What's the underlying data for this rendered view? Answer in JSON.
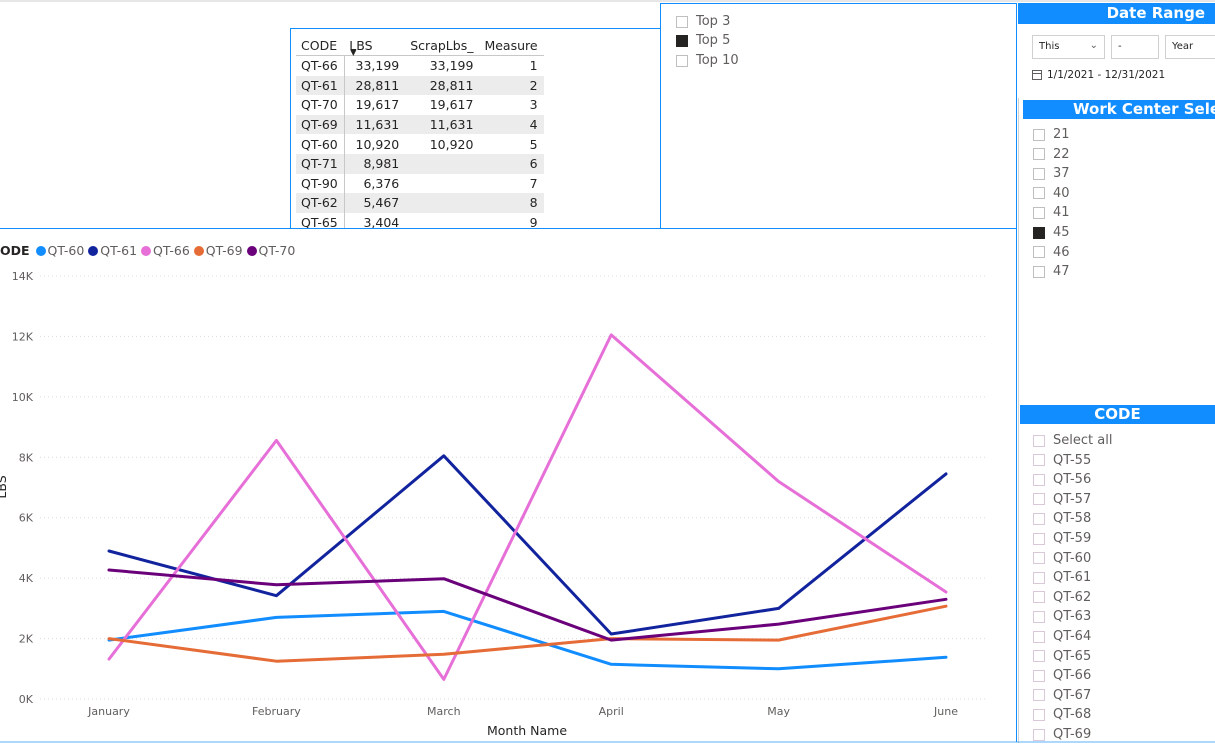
{
  "table": {
    "headers": [
      "CODE",
      "LBS",
      "ScrapLbs_",
      "Measure"
    ],
    "sort_icon": "sort-down-icon",
    "rows": [
      {
        "code": "QT-66",
        "lbs": "33,199",
        "scrap": "33,199",
        "measure": "1"
      },
      {
        "code": "QT-61",
        "lbs": "28,811",
        "scrap": "28,811",
        "measure": "2"
      },
      {
        "code": "QT-70",
        "lbs": "19,617",
        "scrap": "19,617",
        "measure": "3"
      },
      {
        "code": "QT-69",
        "lbs": "11,631",
        "scrap": "11,631",
        "measure": "4"
      },
      {
        "code": "QT-60",
        "lbs": "10,920",
        "scrap": "10,920",
        "measure": "5"
      },
      {
        "code": "QT-71",
        "lbs": "8,981",
        "scrap": "",
        "measure": "6"
      },
      {
        "code": "QT-90",
        "lbs": "6,376",
        "scrap": "",
        "measure": "7"
      },
      {
        "code": "QT-62",
        "lbs": "5,467",
        "scrap": "",
        "measure": "8"
      },
      {
        "code": "QT-65",
        "lbs": "3,404",
        "scrap": "",
        "measure": "9"
      }
    ]
  },
  "topn": {
    "items": [
      {
        "label": "Top 3",
        "checked": false
      },
      {
        "label": "Top 5",
        "checked": true
      },
      {
        "label": "Top 10",
        "checked": false
      }
    ]
  },
  "date_range": {
    "title": "Date Range",
    "period": "This",
    "count": "-",
    "unit": "Year",
    "range_text": "1/1/2021 - 12/31/2021"
  },
  "work_center": {
    "title": "Work Center Selec",
    "items": [
      {
        "label": "21",
        "checked": false
      },
      {
        "label": "22",
        "checked": false
      },
      {
        "label": "37",
        "checked": false
      },
      {
        "label": "40",
        "checked": false
      },
      {
        "label": "41",
        "checked": false
      },
      {
        "label": "45",
        "checked": true
      },
      {
        "label": "46",
        "checked": false
      },
      {
        "label": "47",
        "checked": false
      }
    ]
  },
  "code_slicer": {
    "title": "CODE",
    "items": [
      "Select all",
      "QT-55",
      "QT-56",
      "QT-57",
      "QT-58",
      "QT-59",
      "QT-60",
      "QT-61",
      "QT-62",
      "QT-63",
      "QT-64",
      "QT-65",
      "QT-66",
      "QT-67",
      "QT-68",
      "QT-69"
    ]
  },
  "chart_data": {
    "type": "line",
    "legend_title": "ODE",
    "xlabel": "Month Name",
    "ylabel": "LBS",
    "categories": [
      "January",
      "February",
      "March",
      "April",
      "May",
      "June"
    ],
    "ylim": [
      0,
      14000
    ],
    "yticks": [
      0,
      2000,
      4000,
      6000,
      8000,
      10000,
      12000,
      14000
    ],
    "ytick_labels": [
      "0K",
      "2K",
      "4K",
      "6K",
      "8K",
      "10K",
      "12K",
      "14K"
    ],
    "grid": true,
    "legend_position": "top-left",
    "series": [
      {
        "name": "QT-60",
        "color": "#118dff",
        "values": [
          1950,
          2700,
          2900,
          1150,
          1000,
          1380
        ]
      },
      {
        "name": "QT-61",
        "color": "#12239e",
        "values": [
          4900,
          3420,
          8050,
          2150,
          3000,
          7450
        ]
      },
      {
        "name": "QT-66",
        "color": "#e66fd8",
        "values": [
          1320,
          8560,
          650,
          12050,
          7200,
          3540
        ]
      },
      {
        "name": "QT-69",
        "color": "#e66c37",
        "values": [
          2000,
          1250,
          1480,
          2000,
          1950,
          3070
        ]
      },
      {
        "name": "QT-70",
        "color": "#6b007b",
        "values": [
          4270,
          3780,
          3980,
          1950,
          2480,
          3300
        ]
      }
    ]
  }
}
